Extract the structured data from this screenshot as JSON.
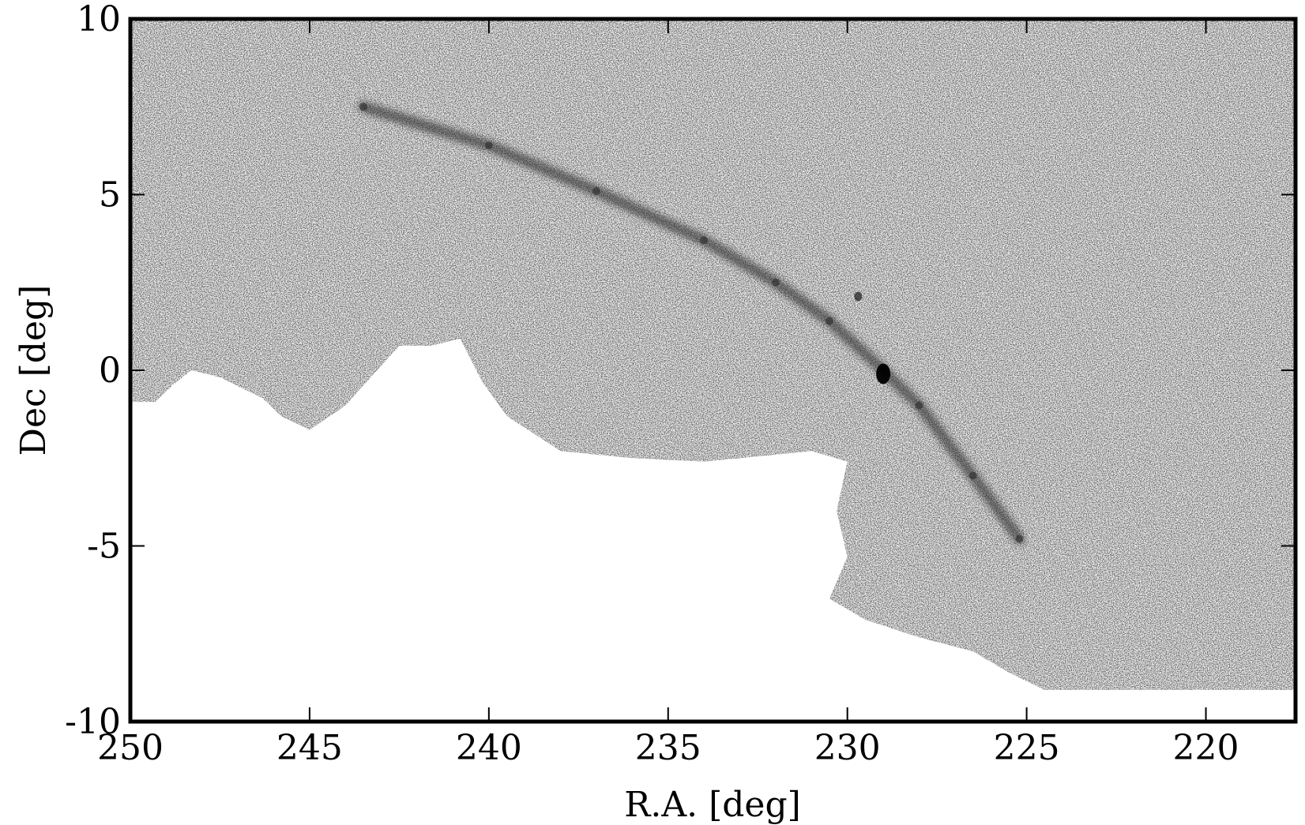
{
  "chart_data": {
    "type": "scatter",
    "title": "",
    "xlabel": "R.A. [deg]",
    "ylabel": "Dec [deg]",
    "xlim": [
      250,
      217.5
    ],
    "ylim": [
      -10,
      10
    ],
    "x_reversed": true,
    "grid": false,
    "legend": "none",
    "xticks": [
      250,
      245,
      240,
      235,
      230,
      225,
      220
    ],
    "xtick_labels": [
      "250",
      "245",
      "240",
      "235",
      "230",
      "225",
      "220"
    ],
    "yticks": [
      10,
      5,
      0,
      -5,
      -10
    ],
    "ytick_labels": [
      "10",
      "5",
      "0",
      "-5",
      "-10"
    ],
    "series": [
      {
        "kind": "stellar-density-stream",
        "points": [
          {
            "x": 243.5,
            "y": 7.5
          },
          {
            "x": 240,
            "y": 6.4
          },
          {
            "x": 237,
            "y": 5.1
          },
          {
            "x": 234,
            "y": 3.7
          },
          {
            "x": 232,
            "y": 2.5
          },
          {
            "x": 230.5,
            "y": 1.4
          },
          {
            "x": 229.0,
            "y": 0.0
          },
          {
            "x": 228.0,
            "y": -1.0
          },
          {
            "x": 226.5,
            "y": -3.0
          },
          {
            "x": 225.2,
            "y": -4.8
          }
        ]
      },
      {
        "kind": "globular-cluster",
        "points": [
          {
            "x": 229.0,
            "y": -0.1
          }
        ]
      },
      {
        "kind": "small-cluster",
        "points": [
          {
            "x": 229.7,
            "y": 2.1
          }
        ]
      }
    ],
    "coverage_boundary": [
      [
        250,
        10
      ],
      [
        217.5,
        10
      ],
      [
        217.5,
        -9.1
      ],
      [
        224.5,
        -9.1
      ],
      [
        225.5,
        -8.6
      ],
      [
        226.5,
        -8.0
      ],
      [
        228.0,
        -7.6
      ],
      [
        229.5,
        -7.1
      ],
      [
        230.5,
        -6.5
      ],
      [
        230.0,
        -5.3
      ],
      [
        230.3,
        -4.0
      ],
      [
        230.0,
        -2.6
      ],
      [
        231.0,
        -2.3
      ],
      [
        234.0,
        -2.6
      ],
      [
        236.0,
        -2.5
      ],
      [
        238.0,
        -2.3
      ],
      [
        239.5,
        -1.3
      ],
      [
        240.2,
        -0.3
      ],
      [
        240.8,
        0.9
      ],
      [
        241.6,
        0.7
      ],
      [
        242.5,
        0.7
      ],
      [
        244.0,
        -1.0
      ],
      [
        245.0,
        -1.7
      ],
      [
        245.8,
        -1.3
      ],
      [
        246.3,
        -0.8
      ],
      [
        247.5,
        -0.2
      ],
      [
        248.3,
        0.0
      ],
      [
        248.8,
        -0.4
      ],
      [
        249.3,
        -0.9
      ],
      [
        250,
        -0.9
      ]
    ],
    "colors": {
      "background": "#ffffff",
      "stars": "#3a3a3a",
      "stream": "#1a1a1a",
      "frame": "#000000"
    }
  }
}
